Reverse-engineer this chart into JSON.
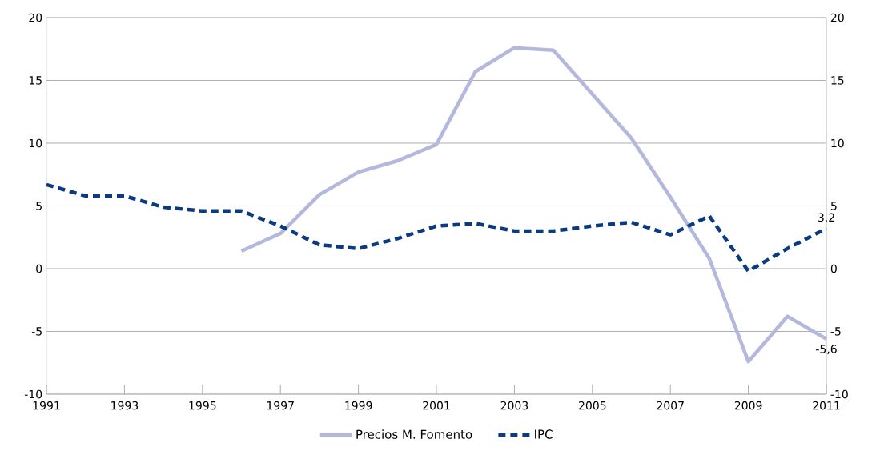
{
  "chart_data": {
    "type": "line",
    "x": [
      1991,
      1992,
      1993,
      1994,
      1995,
      1996,
      1997,
      1998,
      1999,
      2000,
      2001,
      2002,
      2003,
      2004,
      2005,
      2006,
      2007,
      2008,
      2009,
      2010,
      2011
    ],
    "series": [
      {
        "name": "Precios M. Fomento",
        "color": "#b4b8dc",
        "line_style": "solid",
        "values": [
          null,
          null,
          null,
          null,
          null,
          1.4,
          2.8,
          5.9,
          7.7,
          8.6,
          9.9,
          15.7,
          17.6,
          17.4,
          13.9,
          10.4,
          5.7,
          0.8,
          -7.4,
          -3.8,
          -5.6
        ],
        "value_labels": [
          null,
          null,
          null,
          null,
          null,
          null,
          null,
          null,
          null,
          null,
          null,
          null,
          null,
          null,
          null,
          null,
          null,
          null,
          null,
          null,
          "-5,6"
        ]
      },
      {
        "name": "IPC",
        "color": "#0a3a80",
        "line_style": "dashed",
        "values": [
          6.7,
          5.8,
          5.8,
          4.9,
          4.6,
          4.6,
          3.4,
          1.9,
          1.6,
          2.4,
          3.4,
          3.6,
          3.0,
          3.0,
          3.4,
          3.7,
          2.7,
          4.2,
          -0.2,
          1.6,
          3.2
        ],
        "value_labels": [
          null,
          null,
          null,
          null,
          null,
          null,
          null,
          null,
          null,
          null,
          null,
          null,
          null,
          null,
          null,
          null,
          null,
          null,
          null,
          null,
          "3,2"
        ]
      }
    ],
    "xlim": [
      1991,
      2011
    ],
    "xticks": [
      1991,
      1993,
      1995,
      1997,
      1999,
      2001,
      2003,
      2005,
      2007,
      2009,
      2011
    ],
    "ylim": [
      -10,
      20
    ],
    "yticks": [
      -10,
      -5,
      0,
      5,
      10,
      15,
      20
    ],
    "y2lim": [
      -10,
      20
    ],
    "y2ticks": [
      -10,
      -5,
      0,
      5,
      10,
      15,
      20
    ],
    "grid": "y",
    "legend": "bottom"
  }
}
